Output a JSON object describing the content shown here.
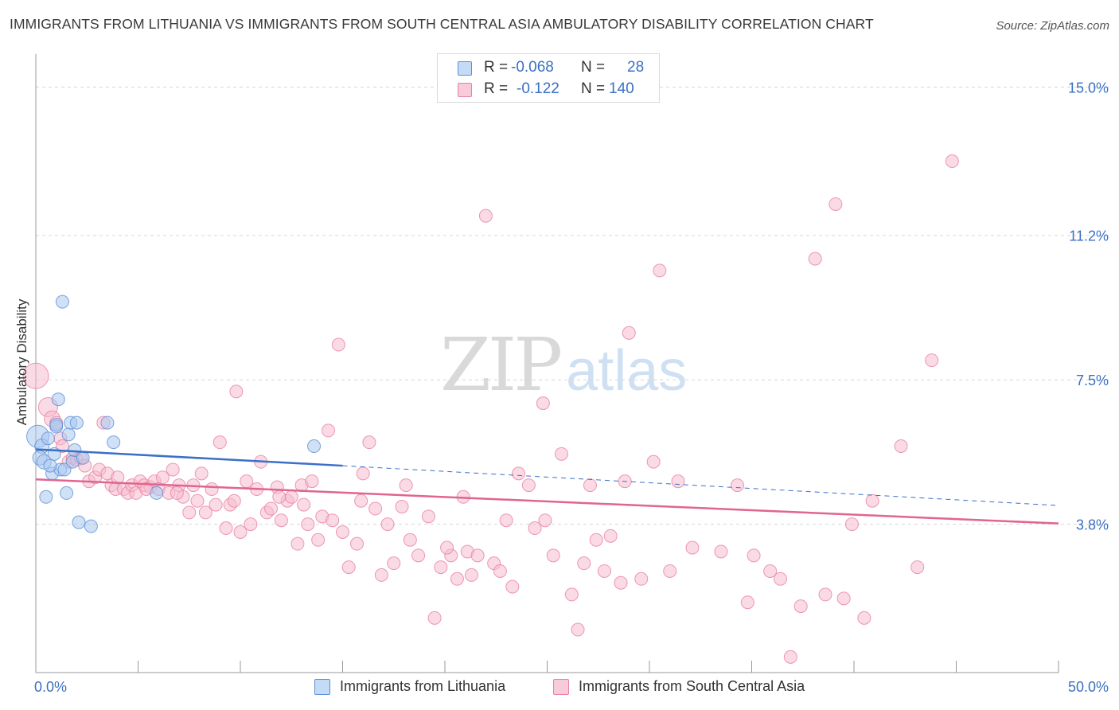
{
  "title": "IMMIGRANTS FROM LITHUANIA VS IMMIGRANTS FROM SOUTH CENTRAL ASIA AMBULATORY DISABILITY CORRELATION CHART",
  "source": "Source: ZipAtlas.com",
  "watermark": {
    "zip": "ZIP",
    "atlas": "atlas"
  },
  "legend_top": {
    "rows": [
      {
        "r_label": "R =",
        "r_value": "-0.068",
        "n_label": "N =",
        "n_value": "28"
      },
      {
        "r_label": "R =",
        "r_value": "-0.122",
        "n_label": "N =",
        "n_value": "140"
      }
    ]
  },
  "colors": {
    "lithuania_fill": "#a9c8ef",
    "lithuania_stroke": "#5b8fd6",
    "lithuania_line": "#3a70c8",
    "sca_fill": "#f5bccd",
    "sca_stroke": "#e8819f",
    "sca_line": "#e06591",
    "grid": "#d8d8d8",
    "axis": "#999999",
    "tick_label": "#3a70c2"
  },
  "chart_data": {
    "type": "scatter",
    "title": "IMMIGRANTS FROM LITHUANIA VS IMMIGRANTS FROM SOUTH CENTRAL ASIA AMBULATORY DISABILITY CORRELATION CHART",
    "xlabel": "",
    "ylabel": "Ambulatory Disability",
    "xlim": [
      0,
      50
    ],
    "ylim": [
      0,
      15.7
    ],
    "x_tick_labels": [
      "0.0%",
      "50.0%"
    ],
    "y_ticks": [
      3.8,
      7.5,
      11.2,
      15.0
    ],
    "y_tick_labels": [
      "3.8%",
      "7.5%",
      "11.2%",
      "15.0%"
    ],
    "grid": true,
    "legend_position": "bottom",
    "series": [
      {
        "name": "Immigrants from Lithuania",
        "r": -0.068,
        "n": 28,
        "trend": {
          "x0": 0,
          "y0": 5.72,
          "x1": 15,
          "y1": 5.3,
          "dashed_to_x": 50,
          "dashed_to_y": 4.28
        },
        "points": [
          [
            0.1,
            6.05,
            14
          ],
          [
            0.3,
            5.8,
            9
          ],
          [
            0.2,
            5.5,
            9
          ],
          [
            0.4,
            5.4,
            9
          ],
          [
            0.5,
            4.5,
            8
          ],
          [
            0.6,
            6.0,
            8
          ],
          [
            0.8,
            5.1,
            8
          ],
          [
            0.9,
            5.6,
            8
          ],
          [
            1.0,
            6.3,
            8
          ],
          [
            1.1,
            7.0,
            8
          ],
          [
            1.2,
            5.2,
            8
          ],
          [
            1.3,
            9.5,
            8
          ],
          [
            1.4,
            5.2,
            8
          ],
          [
            1.5,
            4.6,
            8
          ],
          [
            1.6,
            6.1,
            8
          ],
          [
            1.7,
            6.4,
            8
          ],
          [
            1.8,
            5.4,
            8
          ],
          [
            1.9,
            5.7,
            8
          ],
          [
            2.0,
            6.4,
            8
          ],
          [
            2.1,
            3.85,
            8
          ],
          [
            2.3,
            5.5,
            8
          ],
          [
            2.7,
            3.75,
            8
          ],
          [
            3.5,
            6.4,
            8
          ],
          [
            3.8,
            5.9,
            8
          ],
          [
            5.9,
            4.6,
            8
          ],
          [
            1.0,
            6.35,
            8
          ],
          [
            0.7,
            5.3,
            8
          ],
          [
            13.6,
            5.8,
            8
          ]
        ]
      },
      {
        "name": "Immigrants from South Central Asia",
        "r": -0.122,
        "n": 140,
        "trend": {
          "x0": 0,
          "y0": 4.95,
          "x1": 50,
          "y1": 3.82
        },
        "points": [
          [
            0.0,
            7.6,
            16
          ],
          [
            0.6,
            6.8,
            12
          ],
          [
            0.8,
            6.5,
            10
          ],
          [
            1.2,
            6.0,
            8
          ],
          [
            1.0,
            6.4,
            8
          ],
          [
            1.3,
            5.8,
            8
          ],
          [
            1.6,
            5.4,
            8
          ],
          [
            1.8,
            5.5,
            8
          ],
          [
            2.0,
            5.45,
            8
          ],
          [
            2.2,
            5.5,
            8
          ],
          [
            2.4,
            5.3,
            8
          ],
          [
            2.6,
            4.9,
            8
          ],
          [
            2.9,
            5.0,
            8
          ],
          [
            3.1,
            5.2,
            8
          ],
          [
            3.3,
            6.4,
            8
          ],
          [
            3.5,
            5.1,
            8
          ],
          [
            3.7,
            4.8,
            8
          ],
          [
            3.9,
            4.7,
            8
          ],
          [
            4.0,
            5.0,
            8
          ],
          [
            4.3,
            4.7,
            8
          ],
          [
            4.5,
            4.6,
            8
          ],
          [
            4.7,
            4.8,
            8
          ],
          [
            4.9,
            4.6,
            8
          ],
          [
            5.1,
            4.9,
            8
          ],
          [
            5.3,
            4.8,
            8
          ],
          [
            5.6,
            4.75,
            8
          ],
          [
            5.8,
            4.9,
            8
          ],
          [
            6.0,
            4.7,
            8
          ],
          [
            6.2,
            5.0,
            8
          ],
          [
            6.5,
            4.6,
            8
          ],
          [
            6.7,
            5.2,
            8
          ],
          [
            7.0,
            4.8,
            8
          ],
          [
            7.2,
            4.5,
            8
          ],
          [
            7.5,
            4.1,
            8
          ],
          [
            7.7,
            4.8,
            8
          ],
          [
            7.9,
            4.4,
            8
          ],
          [
            8.1,
            5.1,
            8
          ],
          [
            8.3,
            4.1,
            8
          ],
          [
            8.6,
            4.7,
            8
          ],
          [
            8.8,
            4.3,
            8
          ],
          [
            9.0,
            5.9,
            8
          ],
          [
            9.3,
            3.7,
            8
          ],
          [
            9.5,
            4.3,
            8
          ],
          [
            9.8,
            7.2,
            8
          ],
          [
            10.0,
            3.6,
            8
          ],
          [
            10.3,
            4.9,
            8
          ],
          [
            10.5,
            3.8,
            8
          ],
          [
            10.8,
            4.7,
            8
          ],
          [
            11.0,
            5.4,
            8
          ],
          [
            11.3,
            4.1,
            8
          ],
          [
            11.5,
            4.2,
            8
          ],
          [
            11.8,
            4.75,
            8
          ],
          [
            12.0,
            3.9,
            8
          ],
          [
            12.3,
            4.4,
            8
          ],
          [
            12.5,
            4.5,
            8
          ],
          [
            12.8,
            3.3,
            8
          ],
          [
            13.0,
            4.8,
            8
          ],
          [
            13.3,
            3.8,
            8
          ],
          [
            13.5,
            4.9,
            8
          ],
          [
            13.8,
            3.4,
            8
          ],
          [
            14.0,
            4.0,
            8
          ],
          [
            14.3,
            6.2,
            8
          ],
          [
            14.5,
            3.9,
            8
          ],
          [
            14.8,
            8.4,
            8
          ],
          [
            15.0,
            3.6,
            8
          ],
          [
            15.3,
            2.7,
            8
          ],
          [
            15.7,
            3.3,
            8
          ],
          [
            16.0,
            5.1,
            8
          ],
          [
            16.3,
            5.9,
            8
          ],
          [
            16.6,
            4.2,
            8
          ],
          [
            16.9,
            2.5,
            8
          ],
          [
            17.2,
            3.8,
            8
          ],
          [
            17.5,
            2.8,
            8
          ],
          [
            17.9,
            4.25,
            8
          ],
          [
            18.3,
            3.4,
            8
          ],
          [
            18.7,
            3.0,
            8
          ],
          [
            19.2,
            4.0,
            8
          ],
          [
            19.5,
            1.4,
            8
          ],
          [
            19.8,
            2.7,
            8
          ],
          [
            20.3,
            3.0,
            8
          ],
          [
            20.6,
            2.4,
            8
          ],
          [
            20.9,
            4.5,
            8
          ],
          [
            21.1,
            3.1,
            8
          ],
          [
            21.3,
            2.5,
            8
          ],
          [
            21.6,
            3.0,
            8
          ],
          [
            22.0,
            11.7,
            8
          ],
          [
            22.4,
            2.8,
            8
          ],
          [
            22.7,
            2.6,
            8
          ],
          [
            23.0,
            3.9,
            8
          ],
          [
            23.3,
            2.2,
            8
          ],
          [
            23.6,
            5.1,
            8
          ],
          [
            24.1,
            4.8,
            8
          ],
          [
            24.4,
            3.7,
            8
          ],
          [
            24.8,
            6.9,
            8
          ],
          [
            25.3,
            3.0,
            8
          ],
          [
            25.7,
            5.6,
            8
          ],
          [
            26.2,
            2.0,
            8
          ],
          [
            26.5,
            1.1,
            8
          ],
          [
            26.8,
            2.8,
            8
          ],
          [
            27.1,
            4.8,
            8
          ],
          [
            27.4,
            3.4,
            8
          ],
          [
            27.8,
            2.6,
            8
          ],
          [
            28.6,
            2.3,
            8
          ],
          [
            28.8,
            4.9,
            8
          ],
          [
            29.0,
            8.7,
            8
          ],
          [
            29.6,
            2.4,
            8
          ],
          [
            30.2,
            5.4,
            8
          ],
          [
            30.5,
            10.3,
            8
          ],
          [
            31.0,
            2.6,
            8
          ],
          [
            31.4,
            4.9,
            8
          ],
          [
            32.1,
            3.2,
            8
          ],
          [
            33.5,
            3.1,
            8
          ],
          [
            34.3,
            4.8,
            8
          ],
          [
            34.8,
            1.8,
            8
          ],
          [
            35.1,
            3.0,
            8
          ],
          [
            35.9,
            2.6,
            8
          ],
          [
            36.4,
            2.4,
            8
          ],
          [
            37.4,
            1.7,
            8
          ],
          [
            38.1,
            10.6,
            8
          ],
          [
            38.6,
            2.0,
            8
          ],
          [
            39.1,
            12.0,
            8
          ],
          [
            39.5,
            1.9,
            8
          ],
          [
            39.9,
            3.8,
            8
          ],
          [
            40.5,
            1.4,
            8
          ],
          [
            40.9,
            4.4,
            8
          ],
          [
            42.3,
            5.8,
            8
          ],
          [
            43.1,
            2.7,
            8
          ],
          [
            43.8,
            8.0,
            8
          ],
          [
            44.8,
            13.1,
            8
          ],
          [
            36.9,
            0.4,
            8
          ],
          [
            5.4,
            4.7,
            8
          ],
          [
            6.9,
            4.6,
            8
          ],
          [
            9.7,
            4.4,
            8
          ],
          [
            11.9,
            4.5,
            8
          ],
          [
            13.1,
            4.3,
            8
          ],
          [
            15.9,
            4.4,
            8
          ],
          [
            18.1,
            4.8,
            8
          ],
          [
            20.1,
            3.2,
            8
          ],
          [
            24.9,
            3.9,
            8
          ],
          [
            28.1,
            3.5,
            8
          ]
        ]
      }
    ]
  },
  "legend_bottom": [
    {
      "label": "Immigrants from Lithuania"
    },
    {
      "label": "Immigrants from South Central Asia"
    }
  ]
}
